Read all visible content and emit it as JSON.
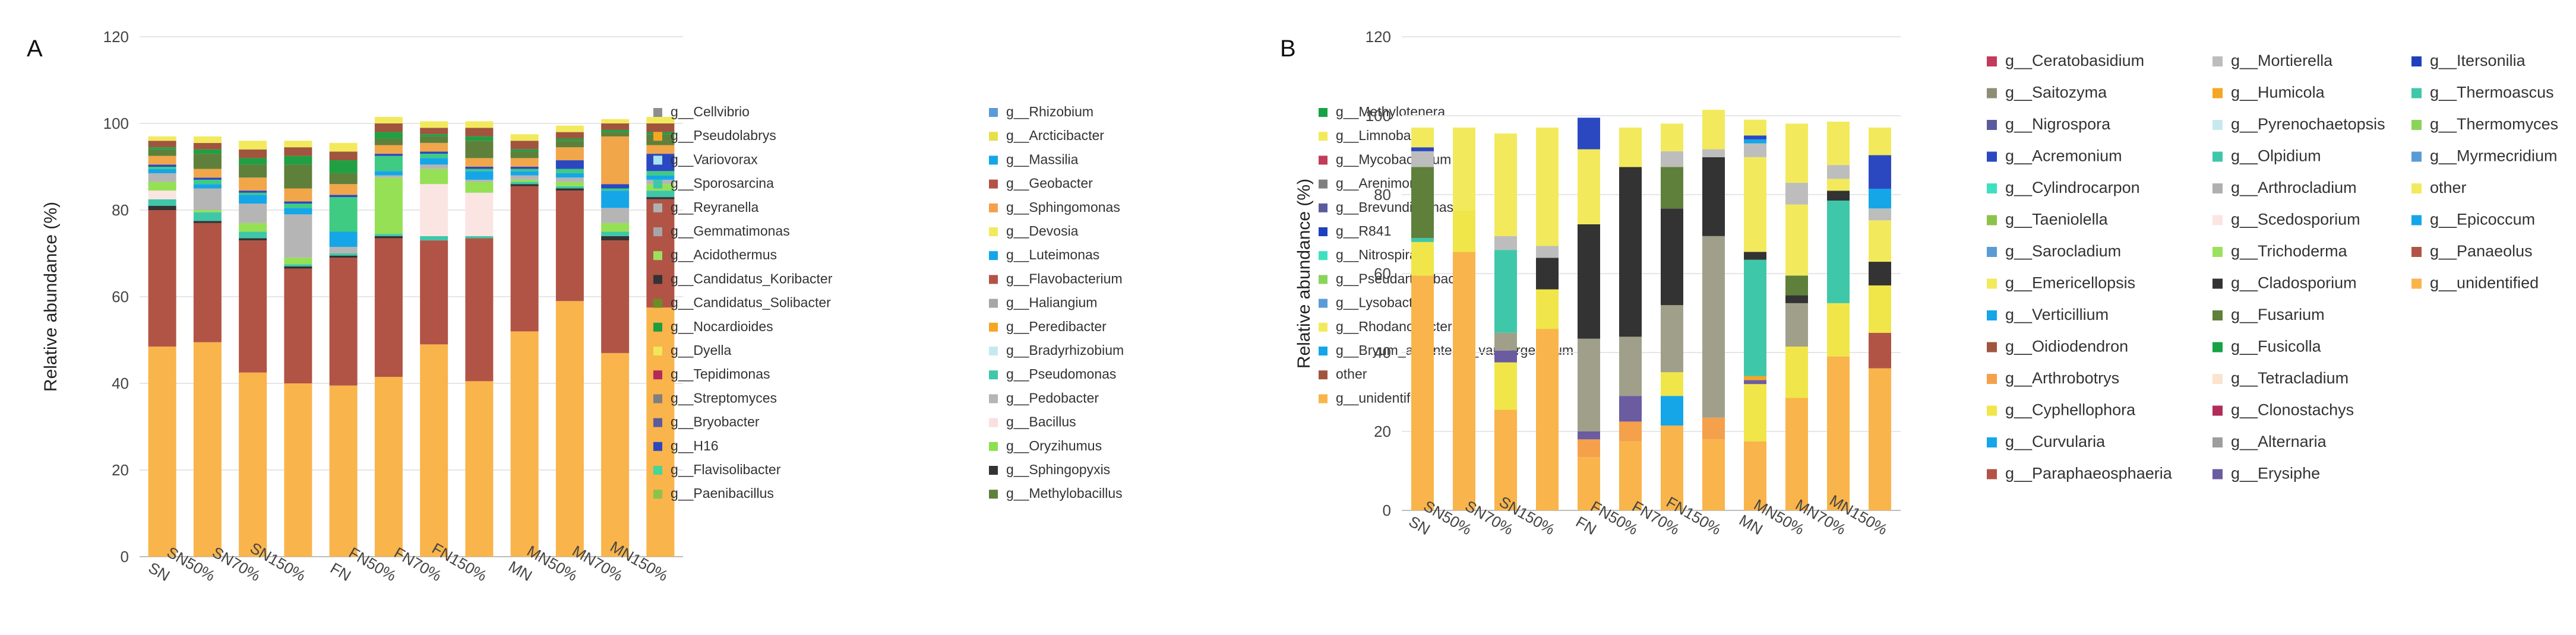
{
  "chart_data": [
    {
      "panel_label": "A",
      "type": "bar",
      "stacked": true,
      "ylabel": "Relative abundance (%)",
      "ylim": [
        0,
        120
      ],
      "yticks": [
        0,
        20,
        40,
        60,
        80,
        100,
        120
      ],
      "categories": [
        "SN",
        "SN50%",
        "SN70%",
        "SN150%",
        "FN",
        "FN50%",
        "FN70%",
        "FN150%",
        "MN",
        "MN50%",
        "MN70%",
        "MN150%"
      ],
      "series": [
        {
          "name": "g__unidentified",
          "color": "#F9B44B",
          "values": [
            48.5,
            49.5,
            42.5,
            40,
            39.5,
            41.5,
            49,
            40.5,
            52,
            59,
            47,
            57.5
          ]
        },
        {
          "name": "g__Flavobacterium",
          "color": "#B15446",
          "values": [
            31.5,
            27.5,
            30.5,
            26.5,
            29.5,
            32,
            24,
            33,
            33.5,
            25.5,
            26,
            25
          ]
        },
        {
          "name": "g__Sphingopyxis",
          "color": "#333333",
          "values": [
            1,
            0.5,
            0.5,
            0.5,
            0.5,
            0.5,
            0,
            0,
            0.5,
            0.5,
            1,
            0.5
          ]
        },
        {
          "name": "g__Pseudomonas",
          "color": "#3FC7A9",
          "values": [
            1.5,
            2,
            1.5,
            0.5,
            0.5,
            0.5,
            1,
            0.5,
            0.5,
            0.5,
            1,
            1.5
          ]
        },
        {
          "name": "g__Bacillus",
          "color": "#FBE5E3",
          "values": [
            2,
            0,
            0,
            0,
            0,
            0,
            12,
            10,
            0,
            0,
            0,
            0
          ]
        },
        {
          "name": "g__Oryzihumus",
          "color": "#95E055",
          "values": [
            2,
            0.5,
            2,
            1.5,
            0,
            13,
            3.5,
            2.5,
            0.5,
            1,
            2,
            1.5
          ]
        },
        {
          "name": "g__Pedobacter",
          "color": "#B5B5B5",
          "values": [
            2,
            5,
            4.5,
            10,
            1.5,
            0.5,
            1,
            0.5,
            1,
            1,
            3.5,
            1
          ]
        },
        {
          "name": "g__Massilia",
          "color": "#15A6E8",
          "values": [
            1,
            1,
            2,
            1.5,
            3.5,
            1,
            1.5,
            2,
            1,
            1,
            4,
            1
          ]
        },
        {
          "name": "g__Flavisolibacter",
          "color": "#3FCB82",
          "values": [
            0.5,
            1,
            0.5,
            1,
            8,
            3.5,
            1,
            0.5,
            0.5,
            1,
            0.5,
            1
          ]
        },
        {
          "name": "g__H16",
          "color": "#2B48C1",
          "values": [
            0.5,
            0.5,
            0.5,
            0.5,
            0.5,
            0.5,
            0.5,
            0.5,
            0.5,
            2,
            1,
            4
          ]
        },
        {
          "name": "g__Sphingomonas",
          "color": "#F1A64A",
          "values": [
            2,
            2,
            3,
            3,
            2.5,
            2,
            2,
            2,
            2,
            3,
            11,
            2
          ]
        },
        {
          "name": "g__Methylobacillus",
          "color": "#5E803A",
          "values": [
            1.5,
            3.5,
            3,
            5.5,
            2.5,
            1.5,
            1.5,
            4,
            1.5,
            1.5,
            1,
            2.5
          ]
        },
        {
          "name": "g__Nocardioides",
          "color": "#20A043",
          "values": [
            0.5,
            1,
            1.5,
            2,
            3,
            1.5,
            0.5,
            1,
            0.5,
            0.5,
            0.5,
            0.5
          ]
        },
        {
          "name": "other",
          "color": "#A0553E",
          "values": [
            1.5,
            1.5,
            2,
            2,
            2,
            2,
            1.5,
            2,
            2,
            1.5,
            1.5,
            2
          ]
        },
        {
          "name": "g__Rhodanobacter",
          "color": "#F2EA5C",
          "values": [
            1,
            1.5,
            2,
            1.5,
            2,
            1.5,
            1.5,
            1.5,
            1.5,
            1.5,
            1,
            1.5
          ]
        }
      ],
      "legend": [
        "g__Cellvibrio",
        "g__Pseudolabrys",
        "g__Variovorax",
        "g__Sporosarcina",
        "g__Reyranella",
        "g__Gemmatimonas",
        "g__Acidothermus",
        "g__Candidatus_Koribacter",
        "g__Candidatus_Solibacter",
        "g__Nocardioides",
        "g__Dyella",
        "g__Tepidimonas",
        "g__Streptomyces",
        "g__Bryobacter",
        "g__H16",
        "g__Flavisolibacter",
        "g__Paenibacillus",
        "g__Rhizobium",
        "g__Arcticibacter",
        "g__Massilia",
        "g__Geobacter",
        "g__Sphingomonas",
        "g__Devosia",
        "g__Luteimonas",
        "g__Flavobacterium",
        "g__Haliangium",
        "g__Peredibacter",
        "g__Bradyrhizobium",
        "g__Pseudomonas",
        "g__Pedobacter",
        "g__Bacillus",
        "g__Oryzihumus",
        "g__Sphingopyxis",
        "g__Methylobacillus",
        "g__Methylotenera",
        "g__Limnobacter",
        "g__Mycobacterium",
        "g__Arenimonas",
        "g__Brevundimonas",
        "g__R841",
        "g__Nitrospira",
        "g__Pseudarthrobacter",
        "g__Lysobacter",
        "g__Rhodanobacter",
        "g__Bryum_argenteum_var._argenteum",
        "other",
        "g__unidentified"
      ],
      "legend_colors": [
        "#8E8E8E",
        "#F5A623",
        "#A8E4EF",
        "#3FC7A9",
        "#B0B0B0",
        "#A6A6A6",
        "#9BE15D",
        "#333333",
        "#6B8E23",
        "#1E9E3E",
        "#F0E65A",
        "#B22B5A",
        "#7F7F7F",
        "#5B5B9E",
        "#2B48C1",
        "#46D696",
        "#8BC34A",
        "#5B9BD5",
        "#E8DF4C",
        "#15A6E8",
        "#B15446",
        "#F5A04A",
        "#F2EA5C",
        "#15A6E8",
        "#B15446",
        "#A6A6A6",
        "#F5A623",
        "#C8E8F0",
        "#3FC7A9",
        "#B5B5B5",
        "#F9E0DE",
        "#8BE04E",
        "#333333",
        "#5E803A",
        "#16A245",
        "#F2EA5C",
        "#C23B5A",
        "#7F7F7F",
        "#5B5B9E",
        "#1F3FBF",
        "#3FE0C0",
        "#8BD45A",
        "#5B9BD5",
        "#F2EA5C",
        "#15A6E8",
        "#A0553E",
        "#F9B44B"
      ]
    },
    {
      "panel_label": "B",
      "type": "bar",
      "stacked": true,
      "ylabel": "Relative abundance (%)",
      "ylim": [
        0,
        120
      ],
      "yticks": [
        0,
        20,
        40,
        60,
        80,
        100,
        120
      ],
      "categories": [
        "SN",
        "SN50%",
        "SN70%",
        "SN150%",
        "FN",
        "FN50%",
        "FN70%",
        "FN150%",
        "MN",
        "MN50%",
        "MN70%",
        "MN150%"
      ],
      "series": [
        {
          "name": "g__unidentified",
          "color": "#F9B44B",
          "values": [
            59.5,
            65.5,
            25.5,
            46,
            13.5,
            17.5,
            21.5,
            18,
            17.5,
            28.5,
            39,
            36
          ]
        },
        {
          "name": "g__Oidiodendron",
          "color": "#B15446",
          "values": [
            0,
            0,
            0,
            0,
            0,
            0,
            0,
            0,
            0,
            0,
            0,
            9
          ]
        },
        {
          "name": "g__Curvularia",
          "color": "#15A6E8",
          "values": [
            0,
            0,
            0,
            0,
            0,
            0,
            7.5,
            0,
            0,
            0,
            0,
            0
          ]
        },
        {
          "name": "g__Arthrobotrys",
          "color": "#F5A04A",
          "values": [
            0,
            0,
            0,
            0,
            4.5,
            5,
            0,
            5.5,
            0,
            0,
            0,
            0
          ]
        },
        {
          "name": "g__Cyphellophora",
          "color": "#F0E64A",
          "values": [
            8.5,
            10.5,
            12,
            10,
            0,
            0,
            6,
            0,
            14.5,
            13,
            13.5,
            12
          ]
        },
        {
          "name": "g__Erysiphe",
          "color": "#6B5BA0",
          "values": [
            0,
            0,
            3,
            0,
            2,
            6.5,
            0,
            0,
            1,
            0,
            0,
            0
          ]
        },
        {
          "name": "g__Humicola",
          "color": "#F5A623",
          "values": [
            0,
            0,
            0,
            0,
            0,
            0,
            0,
            0,
            1,
            0,
            0,
            0
          ]
        },
        {
          "name": "g__Saitozyma",
          "color": "#A0A08A",
          "values": [
            0,
            0,
            4.5,
            0,
            23.5,
            15,
            17,
            46,
            0,
            11,
            0,
            0
          ]
        },
        {
          "name": "g__Olpidium",
          "color": "#3FC7A9",
          "values": [
            1,
            0,
            21,
            0,
            0,
            0,
            0,
            0,
            29.5,
            0,
            26,
            0
          ]
        },
        {
          "name": "g__Cladosporium",
          "color": "#333333",
          "values": [
            0,
            0,
            0,
            8,
            29,
            43,
            24.5,
            20,
            2,
            2,
            2.5,
            6
          ]
        },
        {
          "name": "g__Fusarium",
          "color": "#5E803A",
          "values": [
            18,
            0,
            0,
            0,
            0,
            0,
            10.5,
            0,
            0,
            5,
            0,
            0
          ]
        },
        {
          "name": "g__Emericellopsis",
          "color": "#F2EA5C",
          "values": [
            0,
            0,
            0,
            0,
            19,
            10,
            0,
            0,
            24,
            18,
            3,
            10.5
          ]
        },
        {
          "name": "g__Mortierella",
          "color": "#BDBDBD",
          "values": [
            4,
            0,
            3.5,
            3,
            0,
            0,
            4,
            2,
            3.5,
            5.5,
            3.5,
            3
          ]
        },
        {
          "name": "g__Epicoccum",
          "color": "#15A6E8",
          "values": [
            0,
            0,
            0,
            0,
            0,
            0,
            0,
            0,
            1,
            0,
            0,
            5
          ]
        },
        {
          "name": "g__Acremonium",
          "color": "#2B48C1",
          "values": [
            1,
            0,
            0,
            0,
            8,
            0,
            0,
            0,
            1,
            0,
            0,
            8.5
          ]
        },
        {
          "name": "other",
          "color": "#F2EA5C",
          "values": [
            5,
            21,
            26,
            30,
            0,
            0,
            7,
            10,
            4,
            15,
            11,
            7
          ]
        }
      ],
      "legend": [
        "g__Ceratobasidium",
        "g__Saitozyma",
        "g__Nigrospora",
        "g__Acremonium",
        "g__Cylindrocarpon",
        "g__Taeniolella",
        "g__Sarocladium",
        "g__Emericellopsis",
        "g__Verticillium",
        "g__Oidiodendron",
        "g__Arthrobotrys",
        "g__Cyphellophora",
        "g__Curvularia",
        "g__Paraphaeosphaeria",
        "g__Mortierella",
        "g__Humicola",
        "g__Pyrenochaetopsis",
        "g__Olpidium",
        "g__Arthrocladium",
        "g__Scedosporium",
        "g__Trichoderma",
        "g__Cladosporium",
        "g__Fusarium",
        "g__Fusicolla",
        "g__Tetracladium",
        "g__Clonostachys",
        "g__Alternaria",
        "g__Erysiphe",
        "g__Itersonilia",
        "g__Thermoascus",
        "g__Thermomyces",
        "g__Myrmecridium",
        "other",
        "g__Epicoccum",
        "g__Panaeolus",
        "g__unidentified"
      ],
      "legend_colors": [
        "#C23B5A",
        "#8E8E78",
        "#5B5B9E",
        "#2B48C1",
        "#3FE0C0",
        "#8BC34A",
        "#5B9BD5",
        "#F2EA5C",
        "#15A6E8",
        "#A0553E",
        "#F5A04A",
        "#F0E64A",
        "#15A6E8",
        "#B15446",
        "#BDBDBD",
        "#F5A623",
        "#C8E8F0",
        "#3FC7A9",
        "#B0B0B0",
        "#FBE5E3",
        "#9BE15D",
        "#333333",
        "#5E803A",
        "#16A245",
        "#FCE3CF",
        "#B22B5A",
        "#9E9E9E",
        "#6B5BA0",
        "#1F3FBF",
        "#3FC7A9",
        "#8BD45A",
        "#5B9BD5",
        "#F2EA5C",
        "#15A6E8",
        "#B15446",
        "#F9B44B"
      ]
    }
  ]
}
